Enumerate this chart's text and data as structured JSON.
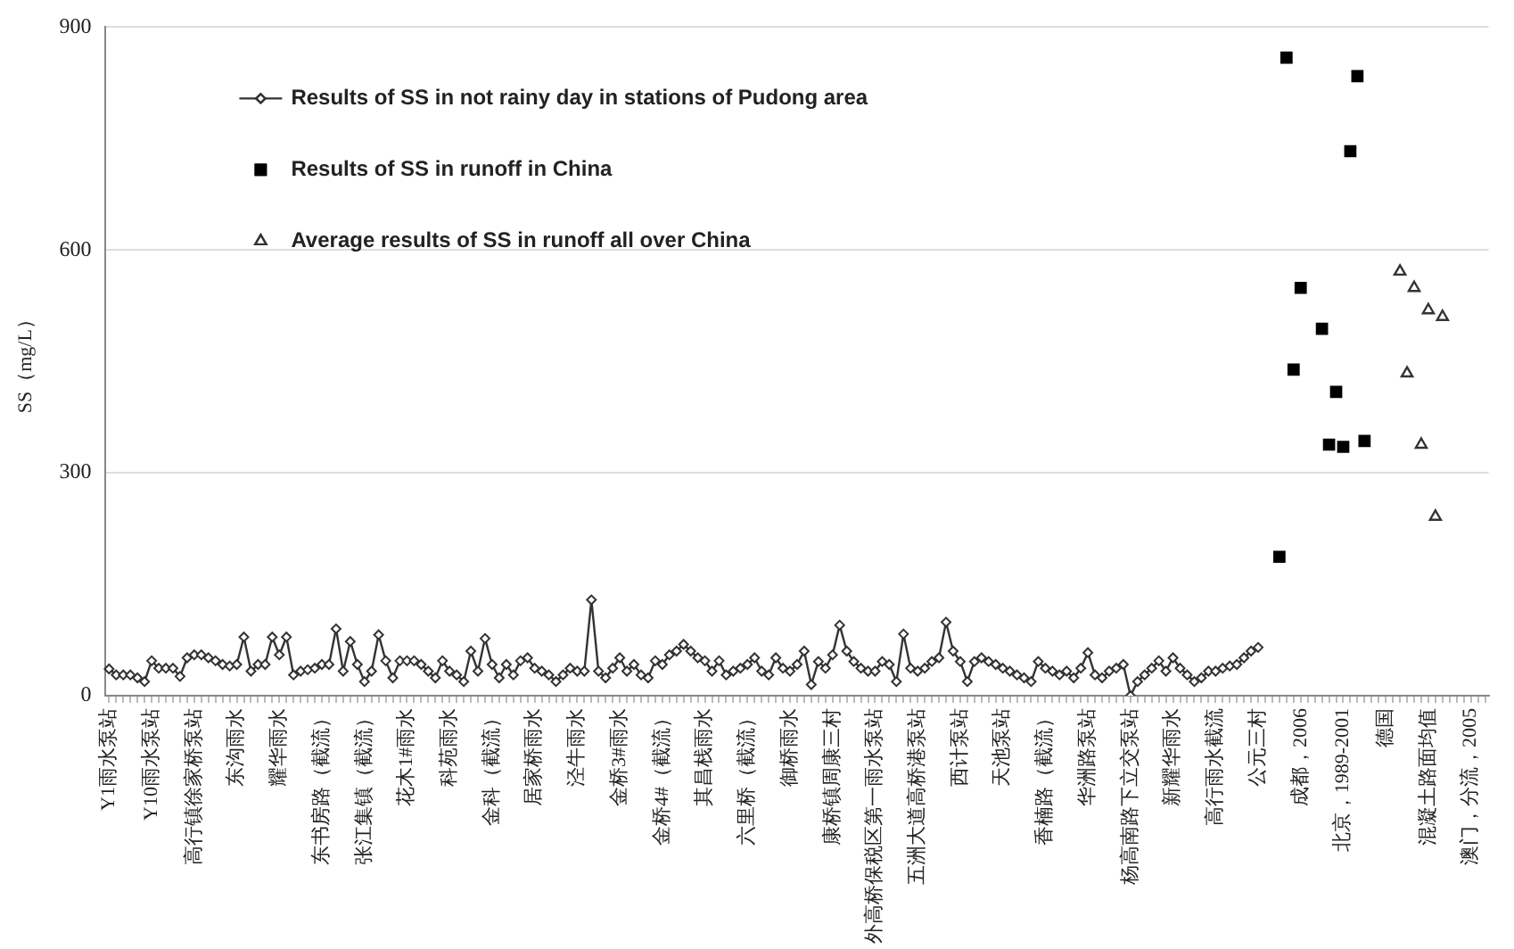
{
  "chart_data": {
    "type": "line",
    "ylabel": "SS（mg/L）",
    "ylim": [
      0,
      900
    ],
    "yticks": [
      0,
      300,
      600,
      900
    ],
    "grid": "y",
    "legend": "top left",
    "categories": [
      "Y1雨水泵站",
      null,
      null,
      null,
      null,
      null,
      "Y10雨水泵站",
      null,
      null,
      null,
      null,
      null,
      "高行镇徐家桥泵站",
      null,
      null,
      null,
      null,
      null,
      "东沟雨水",
      null,
      null,
      null,
      null,
      null,
      "耀华雨水",
      null,
      null,
      null,
      null,
      null,
      "东书房路（截流）",
      null,
      null,
      null,
      null,
      null,
      "张江集镇（截流）",
      null,
      null,
      null,
      null,
      null,
      "花木1#雨水",
      null,
      null,
      null,
      null,
      null,
      "科苑雨水",
      null,
      null,
      null,
      null,
      null,
      "金科（截流）",
      null,
      null,
      null,
      null,
      null,
      "居家桥雨水",
      null,
      null,
      null,
      null,
      null,
      "泾牛雨水",
      null,
      null,
      null,
      null,
      null,
      "金桥3#雨水",
      null,
      null,
      null,
      null,
      null,
      "金桥4#（截流）",
      null,
      null,
      null,
      null,
      null,
      "其昌栈雨水",
      null,
      null,
      null,
      null,
      null,
      "六里桥（截流）",
      null,
      null,
      null,
      null,
      null,
      "御桥雨水",
      null,
      null,
      null,
      null,
      null,
      "康桥镇周康三村",
      null,
      null,
      null,
      null,
      null,
      "外高桥保税区第一雨水泵站",
      null,
      null,
      null,
      null,
      null,
      "五洲大道高桥港泵站",
      null,
      null,
      null,
      null,
      null,
      "西计泵站",
      null,
      null,
      null,
      null,
      null,
      "天池泵站",
      null,
      null,
      null,
      null,
      null,
      "香楠路（截流）",
      null,
      null,
      null,
      null,
      null,
      "华洲路泵站",
      null,
      null,
      null,
      null,
      null,
      "杨高南路下立交泵站",
      null,
      null,
      null,
      null,
      null,
      "新耀华雨水",
      null,
      null,
      null,
      null,
      null,
      "高行雨水截流",
      null,
      null,
      null,
      null,
      null,
      "公元三村",
      null,
      null,
      null,
      null,
      null,
      "成都，2006",
      null,
      null,
      null,
      null,
      null,
      "北京，1989-2001",
      null,
      null,
      null,
      null,
      null,
      "德国",
      null,
      null,
      null,
      null,
      null,
      "混凝土路面均值",
      null,
      null,
      null,
      null,
      null,
      "澳门，分流，2005",
      null,
      null
    ],
    "series": [
      {
        "name": "Results of SS in not rainy day in stations of Pudong area",
        "type": "line",
        "marker": "diamond",
        "color": "#333333",
        "values": [
          36,
          28,
          28,
          28,
          24,
          19,
          47,
          37,
          37,
          37,
          26,
          51,
          55,
          55,
          51,
          47,
          42,
          40,
          42,
          79,
          33,
          42,
          42,
          79,
          55,
          79,
          28,
          33,
          35,
          37,
          42,
          42,
          90,
          33,
          73,
          42,
          19,
          33,
          82,
          47,
          24,
          47,
          47,
          47,
          42,
          33,
          24,
          47,
          33,
          28,
          19,
          60,
          33,
          77,
          42,
          24,
          42,
          28,
          47,
          51,
          37,
          33,
          28,
          19,
          28,
          37,
          33,
          33,
          129,
          33,
          24,
          37,
          51,
          33,
          42,
          28,
          24,
          47,
          42,
          55,
          60,
          69,
          60,
          51,
          47,
          33,
          47,
          28,
          33,
          37,
          42,
          51,
          33,
          28,
          51,
          37,
          33,
          42,
          60,
          15,
          46,
          37,
          55,
          95,
          60,
          46,
          37,
          33,
          33,
          46,
          42,
          19,
          83,
          37,
          33,
          37,
          46,
          51,
          99,
          60,
          46,
          19,
          46,
          51,
          46,
          42,
          37,
          33,
          28,
          24,
          19,
          46,
          37,
          33,
          28,
          33,
          24,
          37,
          58,
          28,
          24,
          33,
          37,
          42,
          0,
          19,
          28,
          37,
          47,
          33,
          51,
          37,
          28,
          19,
          24,
          33,
          33,
          37,
          40,
          42,
          51,
          60,
          65,
          null,
          null,
          null,
          null,
          null,
          null,
          null,
          null,
          null,
          null,
          null,
          null,
          null,
          null,
          null,
          null,
          null,
          null,
          null,
          null,
          null,
          null,
          null,
          null,
          null,
          null,
          null,
          null,
          null,
          null,
          null,
          null
        ]
      },
      {
        "name": "Results of SS in runoff in China",
        "type": "scatter",
        "marker": "square",
        "color": "#000000",
        "values": [
          null,
          null,
          null,
          null,
          null,
          null,
          null,
          null,
          null,
          null,
          null,
          null,
          null,
          null,
          null,
          null,
          null,
          null,
          null,
          null,
          null,
          null,
          null,
          null,
          null,
          null,
          null,
          null,
          null,
          null,
          null,
          null,
          null,
          null,
          null,
          null,
          null,
          null,
          null,
          null,
          null,
          null,
          null,
          null,
          null,
          null,
          null,
          null,
          null,
          null,
          null,
          null,
          null,
          null,
          null,
          null,
          null,
          null,
          null,
          null,
          null,
          null,
          null,
          null,
          null,
          null,
          null,
          null,
          null,
          null,
          null,
          null,
          null,
          null,
          null,
          null,
          null,
          null,
          null,
          null,
          null,
          null,
          null,
          null,
          null,
          null,
          null,
          null,
          null,
          null,
          null,
          null,
          null,
          null,
          null,
          null,
          null,
          null,
          null,
          null,
          null,
          null,
          null,
          null,
          null,
          null,
          null,
          null,
          null,
          null,
          null,
          null,
          null,
          null,
          null,
          null,
          null,
          null,
          null,
          null,
          null,
          null,
          null,
          null,
          null,
          null,
          null,
          null,
          null,
          null,
          null,
          null,
          null,
          null,
          null,
          null,
          null,
          null,
          null,
          null,
          null,
          null,
          null,
          null,
          null,
          null,
          null,
          null,
          null,
          null,
          null,
          null,
          null,
          null,
          null,
          null,
          null,
          null,
          null,
          null,
          null,
          null,
          null,
          null,
          null,
          187,
          859,
          439,
          549,
          null,
          null,
          494,
          338,
          409,
          335,
          733,
          834,
          343,
          null,
          null,
          null,
          null,
          null,
          null,
          null,
          null,
          null,
          null,
          null,
          null,
          null,
          null,
          null,
          null,
          null
        ]
      },
      {
        "name": "Average results of SS in runoff all over China",
        "type": "scatter",
        "marker": "triangle",
        "color": "#333333",
        "values": [
          null,
          null,
          null,
          null,
          null,
          null,
          null,
          null,
          null,
          null,
          null,
          null,
          null,
          null,
          null,
          null,
          null,
          null,
          null,
          null,
          null,
          null,
          null,
          null,
          null,
          null,
          null,
          null,
          null,
          null,
          null,
          null,
          null,
          null,
          null,
          null,
          null,
          null,
          null,
          null,
          null,
          null,
          null,
          null,
          null,
          null,
          null,
          null,
          null,
          null,
          null,
          null,
          null,
          null,
          null,
          null,
          null,
          null,
          null,
          null,
          null,
          null,
          null,
          null,
          null,
          null,
          null,
          null,
          null,
          null,
          null,
          null,
          null,
          null,
          null,
          null,
          null,
          null,
          null,
          null,
          null,
          null,
          null,
          null,
          null,
          null,
          null,
          null,
          null,
          null,
          null,
          null,
          null,
          null,
          null,
          null,
          null,
          null,
          null,
          null,
          null,
          null,
          null,
          null,
          null,
          null,
          null,
          null,
          null,
          null,
          null,
          null,
          null,
          null,
          null,
          null,
          null,
          null,
          null,
          null,
          null,
          null,
          null,
          null,
          null,
          null,
          null,
          null,
          null,
          null,
          null,
          null,
          null,
          null,
          null,
          null,
          null,
          null,
          null,
          null,
          null,
          null,
          null,
          null,
          null,
          null,
          null,
          null,
          null,
          null,
          null,
          null,
          null,
          null,
          null,
          null,
          null,
          null,
          null,
          null,
          null,
          null,
          null,
          null,
          null,
          null,
          null,
          null,
          null,
          null,
          null,
          null,
          null,
          null,
          null,
          null,
          null,
          null,
          null,
          null,
          null,
          null,
          571,
          434,
          549,
          338,
          519,
          241,
          510,
          null,
          null,
          null,
          null,
          null,
          null
        ]
      }
    ]
  }
}
